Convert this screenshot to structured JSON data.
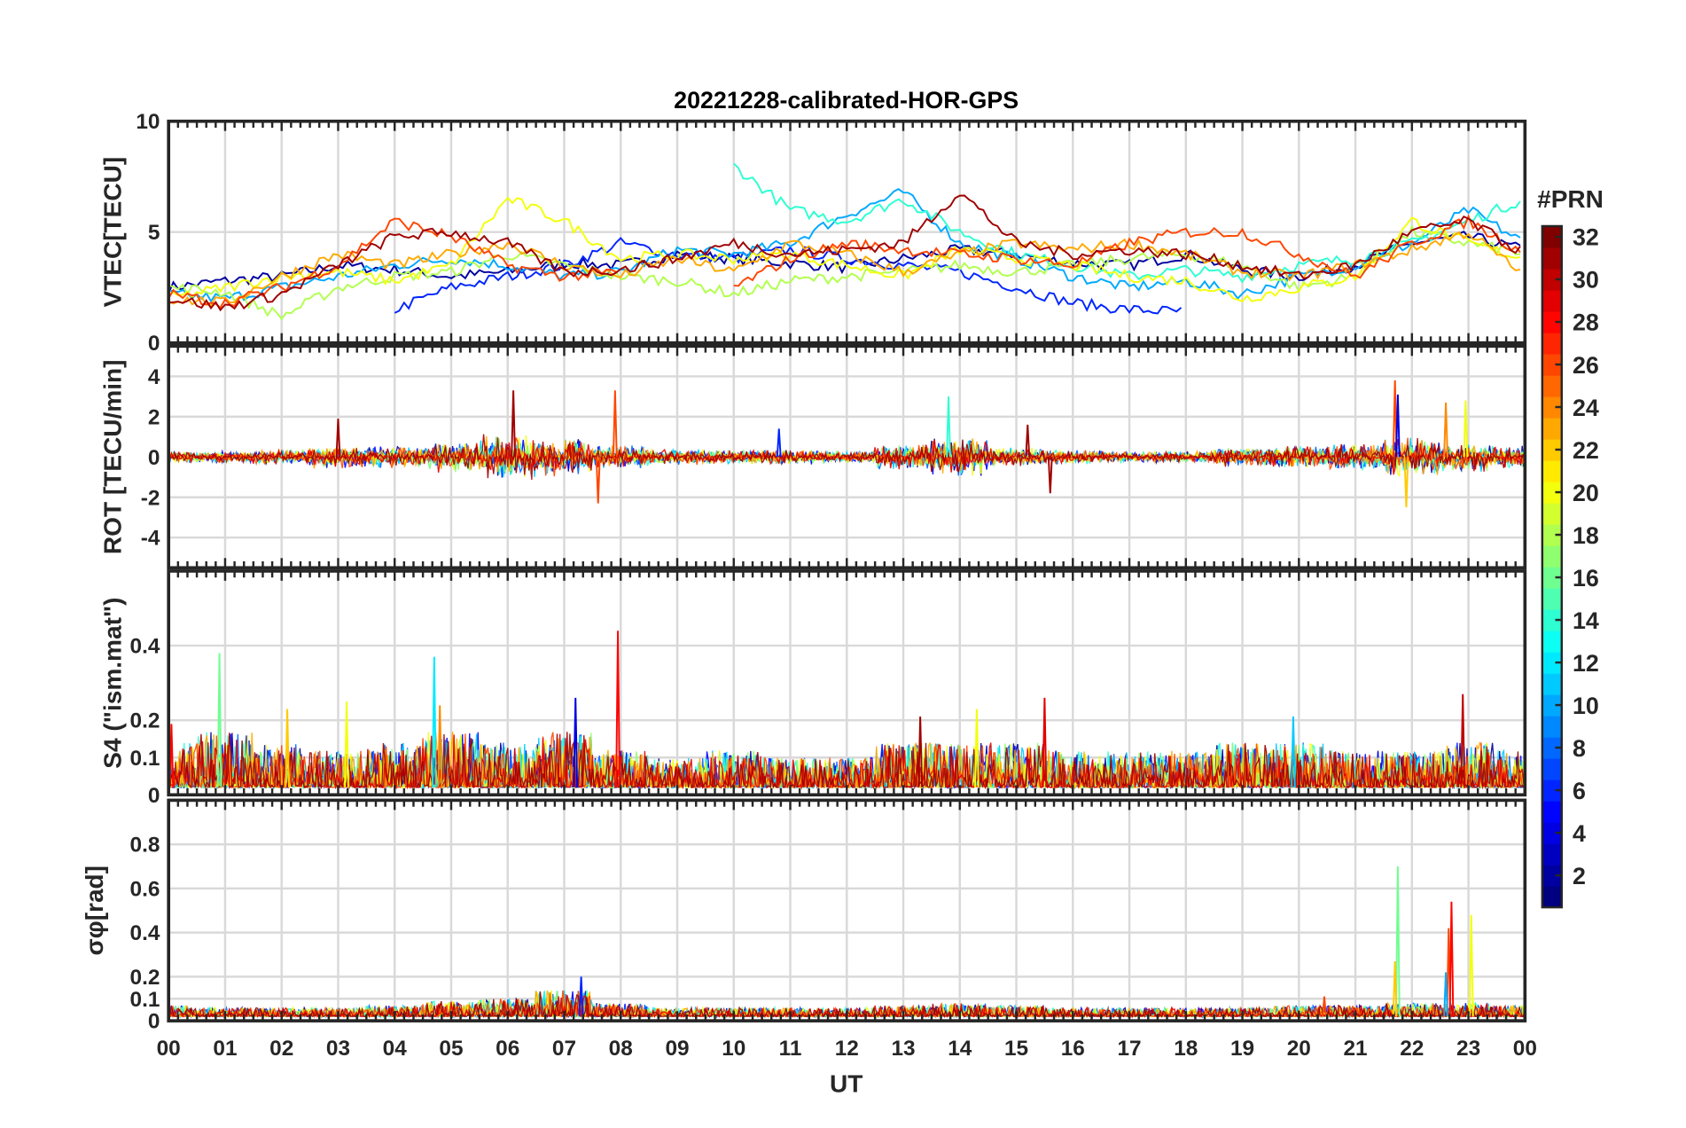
{
  "chart_data": {
    "type": "line",
    "title": "20221228-calibrated-HOR-GPS",
    "xlabel": "UT",
    "xlim": [
      0,
      24
    ],
    "xticks": [
      "00",
      "01",
      "02",
      "03",
      "04",
      "05",
      "06",
      "07",
      "08",
      "09",
      "10",
      "11",
      "12",
      "13",
      "14",
      "15",
      "16",
      "17",
      "18",
      "19",
      "20",
      "21",
      "22",
      "23",
      "00"
    ],
    "grid": true,
    "colorbar": {
      "label": "#PRN",
      "range": [
        1,
        32
      ],
      "ticks": [
        "2",
        "4",
        "6",
        "8",
        "10",
        "12",
        "14",
        "16",
        "18",
        "20",
        "22",
        "24",
        "26",
        "28",
        "30",
        "32"
      ],
      "colormap": "jet",
      "placement": "right"
    },
    "panels": [
      {
        "name": "vtec",
        "ylabel": "VTEC[TECU]",
        "ylim": [
          0,
          10
        ],
        "yticks": [
          "0",
          "5",
          "10"
        ],
        "ytick_values": [
          0,
          5,
          10
        ],
        "series": [
          {
            "prn": 2,
            "values": [
              2.5,
              2.8,
              3.0,
              3.5,
              3.3,
              3.0,
              3.2,
              3.6,
              3.5,
              4.0,
              3.8,
              3.6,
              3.4,
              3.8,
              4.2,
              4.0,
              3.6,
              3.5,
              4.0,
              3.3,
              3.0,
              3.5,
              4.5,
              4.8,
              4.2
            ]
          },
          {
            "prn": 6,
            "values": [
              null,
              null,
              null,
              null,
              1.5,
              2.5,
              3.0,
              3.5,
              4.5,
              4.0,
              3.8,
              4.2,
              3.8,
              3.5,
              3.2,
              2.5,
              1.8,
              1.5,
              1.4,
              null,
              null,
              null,
              null,
              null,
              null
            ]
          },
          {
            "prn": 10,
            "values": [
              2.2,
              2.0,
              2.5,
              3.0,
              3.5,
              3.8,
              3.5,
              3.0,
              3.2,
              4.2,
              4.0,
              4.5,
              5.8,
              6.8,
              4.5,
              3.8,
              3.0,
              2.5,
              2.8,
              2.2,
              3.0,
              3.5,
              4.5,
              6.0,
              4.5
            ]
          },
          {
            "prn": 14,
            "values": [
              null,
              null,
              null,
              null,
              null,
              null,
              null,
              null,
              null,
              null,
              8.0,
              6.0,
              5.5,
              6.5,
              5.0,
              4.0,
              3.5,
              3.0,
              3.3,
              3.0,
              3.5,
              3.8,
              4.5,
              5.5,
              6.5
            ]
          },
          {
            "prn": 18,
            "values": [
              2.5,
              2.3,
              1.2,
              2.5,
              3.0,
              3.2,
              4.0,
              3.5,
              3.0,
              2.8,
              2.2,
              2.8,
              3.0,
              3.2,
              3.5,
              3.2,
              3.5,
              3.8,
              4.0,
              3.5,
              2.5,
              3.0,
              5.0,
              4.5,
              4.0
            ]
          },
          {
            "prn": 20,
            "values": [
              2.0,
              2.5,
              3.0,
              3.2,
              2.8,
              3.5,
              6.5,
              5.5,
              3.8,
              4.0,
              3.8,
              4.0,
              3.5,
              3.0,
              4.2,
              3.8,
              3.5,
              3.0,
              2.8,
              2.0,
              2.5,
              3.0,
              5.5,
              4.5,
              3.8
            ]
          },
          {
            "prn": 23,
            "values": [
              2.0,
              1.8,
              3.0,
              4.0,
              3.5,
              4.0,
              4.5,
              3.5,
              3.0,
              3.8,
              3.2,
              4.5,
              4.0,
              3.2,
              4.0,
              4.5,
              4.2,
              4.5,
              4.0,
              3.2,
              3.0,
              3.5,
              4.2,
              5.0,
              3.0
            ]
          },
          {
            "prn": 26,
            "values": [
              2.2,
              1.8,
              2.5,
              3.5,
              5.5,
              4.8,
              3.5,
              3.0,
              3.2,
              null,
              2.5,
              3.8,
              4.5,
              4.2,
              4.0,
              3.8,
              3.5,
              4.5,
              5.0,
              5.0,
              4.0,
              3.0,
              4.5,
              5.5,
              4.0
            ]
          },
          {
            "prn": 31,
            "values": [
              2.0,
              1.6,
              2.2,
              3.5,
              4.8,
              5.0,
              4.5,
              3.2,
              3.3,
              3.8,
              4.5,
              4.0,
              4.2,
              4.5,
              6.8,
              4.5,
              4.0,
              4.2,
              4.0,
              3.5,
              3.0,
              3.5,
              5.0,
              5.5,
              4.0
            ]
          }
        ]
      },
      {
        "name": "rot",
        "ylabel": "ROT [TECU/min]",
        "ylim": [
          -5.5,
          5.5
        ],
        "yticks": [
          "-4",
          "-2",
          "0",
          "2",
          "4"
        ],
        "ytick_values": [
          -4,
          -2,
          0,
          2,
          4
        ],
        "noise_amplitude_hourly": [
          0.3,
          0.3,
          0.4,
          0.6,
          0.6,
          0.8,
          1.2,
          1.0,
          0.6,
          0.4,
          0.4,
          0.4,
          0.3,
          0.7,
          1.0,
          0.5,
          0.4,
          0.3,
          0.3,
          0.5,
          0.6,
          0.7,
          1.0,
          0.8,
          0.6
        ],
        "spikes": [
          [
            3.0,
            1.9,
            31
          ],
          [
            6.1,
            3.3,
            31
          ],
          [
            7.6,
            -2.3,
            26
          ],
          [
            7.9,
            3.3,
            26
          ],
          [
            13.8,
            3.0,
            14
          ],
          [
            15.6,
            -1.8,
            31
          ],
          [
            15.2,
            1.6,
            31
          ],
          [
            21.7,
            3.8,
            26
          ],
          [
            21.9,
            -2.5,
            22
          ],
          [
            22.6,
            2.7,
            24
          ],
          [
            22.95,
            2.8,
            20
          ],
          [
            10.8,
            1.4,
            6
          ],
          [
            21.75,
            3.1,
            4
          ]
        ]
      },
      {
        "name": "s4",
        "ylabel": "S4 (\"ism.mat\")",
        "ylim": [
          0,
          0.6
        ],
        "yticks": [
          "0",
          "0.1",
          "0.2",
          "0.4"
        ],
        "ytick_values": [
          0,
          0.1,
          0.2,
          0.4
        ],
        "noise_amplitude_hourly": [
          0.12,
          0.15,
          0.12,
          0.1,
          0.12,
          0.15,
          0.12,
          0.15,
          0.1,
          0.08,
          0.1,
          0.08,
          0.08,
          0.12,
          0.12,
          0.12,
          0.1,
          0.1,
          0.1,
          0.12,
          0.12,
          0.1,
          0.1,
          0.12,
          0.1
        ],
        "spikes": [
          [
            0.9,
            0.38,
            16
          ],
          [
            4.7,
            0.37,
            12
          ],
          [
            7.95,
            0.44,
            28
          ],
          [
            4.8,
            0.24,
            24
          ],
          [
            2.1,
            0.23,
            22
          ],
          [
            3.15,
            0.25,
            20
          ],
          [
            7.2,
            0.26,
            4
          ],
          [
            15.5,
            0.26,
            29
          ],
          [
            13.3,
            0.21,
            31
          ],
          [
            14.3,
            0.23,
            20
          ],
          [
            19.9,
            0.21,
            11
          ],
          [
            22.9,
            0.27,
            30
          ],
          [
            0.05,
            0.19,
            28
          ]
        ]
      },
      {
        "name": "sigma-phi",
        "ylabel": "σφ[rad]",
        "ylim": [
          0,
          1.0
        ],
        "yticks": [
          "0",
          "0.1",
          "0.2",
          "0.4",
          "0.6",
          "0.8"
        ],
        "ytick_values": [
          0,
          0.1,
          0.2,
          0.4,
          0.6,
          0.8
        ],
        "noise_amplitude_hourly": [
          0.05,
          0.04,
          0.04,
          0.04,
          0.05,
          0.07,
          0.08,
          0.12,
          0.06,
          0.04,
          0.04,
          0.04,
          0.04,
          0.05,
          0.06,
          0.05,
          0.04,
          0.04,
          0.04,
          0.04,
          0.05,
          0.05,
          0.06,
          0.06,
          0.05
        ],
        "spikes": [
          [
            21.75,
            0.7,
            16
          ],
          [
            22.65,
            0.42,
            26
          ],
          [
            22.7,
            0.54,
            28
          ],
          [
            23.05,
            0.48,
            20
          ],
          [
            7.3,
            0.2,
            6
          ],
          [
            21.7,
            0.27,
            22
          ],
          [
            22.6,
            0.22,
            10
          ],
          [
            20.45,
            0.11,
            26
          ]
        ]
      }
    ]
  }
}
